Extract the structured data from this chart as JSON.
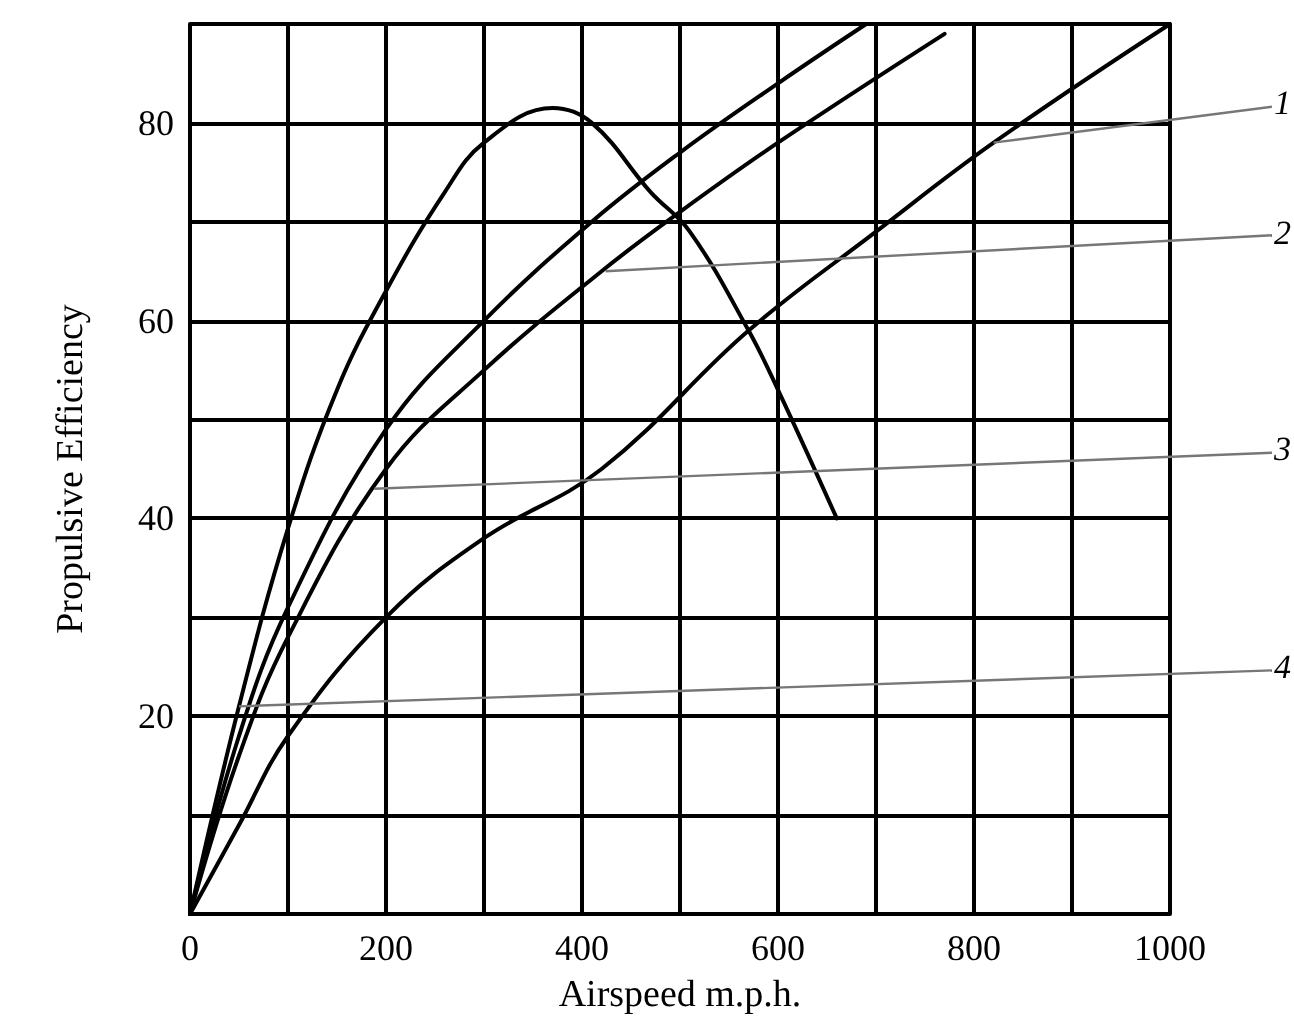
{
  "chart_data": {
    "type": "line",
    "xlabel": "Airspeed m.p.h.",
    "ylabel": "Propulsive Efficiency",
    "xlim": [
      0,
      1000
    ],
    "ylim": [
      0,
      90
    ],
    "xticks": [
      0,
      {
        "value": 100,
        "label": null
      },
      200,
      {
        "value": 300,
        "label": null
      },
      400,
      {
        "value": 500,
        "label": null
      },
      600,
      {
        "value": 700,
        "label": null
      },
      800,
      {
        "value": 900,
        "label": null
      },
      1000
    ],
    "yticks": [
      {
        "value": 0,
        "label": null
      },
      {
        "value": 10,
        "label": null
      },
      20,
      {
        "value": 30,
        "label": null
      },
      40,
      {
        "value": 50,
        "label": null
      },
      60,
      {
        "value": 70,
        "label": null
      },
      80,
      {
        "value": 90,
        "label": null
      }
    ],
    "grid": true,
    "marker": "none",
    "line_style": "solid",
    "series": [
      {
        "color": "#000000",
        "x": [
          0,
          50,
          100,
          150,
          200,
          260,
          300,
          370,
          410,
          470,
          510,
          570,
          600,
          660
        ],
        "values": [
          0,
          21,
          39,
          53,
          63,
          73,
          78,
          81.5,
          80,
          73,
          69,
          59,
          53,
          40
        ]
      },
      {
        "color": "#000000",
        "x": [
          0,
          50,
          100,
          200,
          300,
          410,
          500,
          600,
          690
        ],
        "values": [
          0,
          18,
          31,
          49,
          60,
          70,
          77,
          84,
          90
        ]
      },
      {
        "color": "#000000",
        "x": [
          0,
          50,
          100,
          200,
          300,
          420,
          500,
          600,
          770
        ],
        "values": [
          0,
          16,
          28,
          45,
          55,
          65,
          71,
          78,
          89
        ]
      },
      {
        "color": "#000000",
        "x": [
          0,
          50,
          100,
          200,
          300,
          420,
          570,
          700,
          820,
          1000
        ],
        "values": [
          0,
          9,
          18,
          30,
          38,
          45,
          59,
          69,
          78,
          90
        ]
      }
    ],
    "annotations": [
      {
        "text": "1",
        "x": 820,
        "y": 78
      },
      {
        "text": "2",
        "x": 424,
        "y": 65
      },
      {
        "text": "3",
        "x": 188,
        "y": 43
      },
      {
        "text": "4",
        "x": 50,
        "y": 21
      }
    ]
  }
}
